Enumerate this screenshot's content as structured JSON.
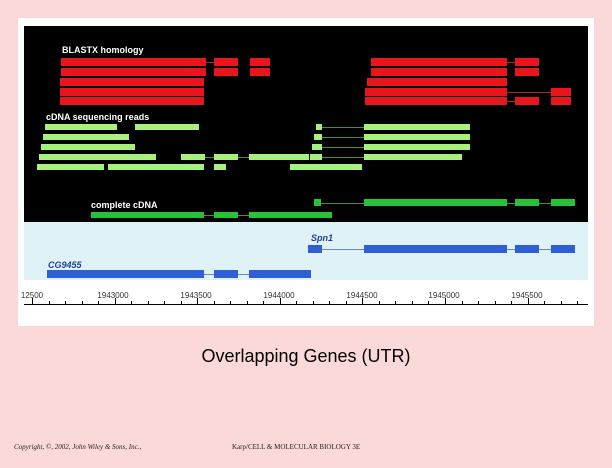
{
  "labels": {
    "blastx": "BLASTX homology",
    "cdna_reads": "cDNA sequencing reads",
    "complete_cdna": "complete cDNA",
    "spn1": "Spn1",
    "cg9455": "CG9455"
  },
  "axis_ticks": [
    "12500",
    "1943000",
    "1943500",
    "1944000",
    "1944500",
    "1945000",
    "1945500"
  ],
  "caption": "Overlapping Genes (UTR)",
  "footer": {
    "copyright": "Copyright, ©, 2002, John Wiley & Sons, Inc.,",
    "credit": "Karp/CELL & MOLECULAR BIOLOGY 3E"
  },
  "colors": {
    "blastx": "#e8161c",
    "reads": "#a8f07e",
    "complete": "#28c23a",
    "gene": "#2f5fd6"
  }
}
